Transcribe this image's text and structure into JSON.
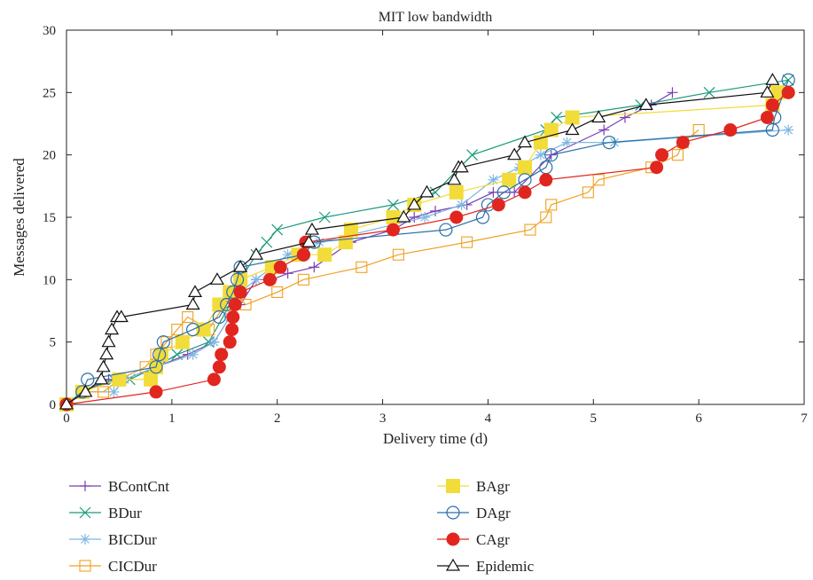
{
  "chart_data": {
    "type": "line",
    "title": "MIT low bandwidth",
    "xlabel": "Delivery time (d)",
    "ylabel": "Messages delivered",
    "xlim": [
      0,
      7
    ],
    "ylim": [
      0,
      30
    ],
    "xticks": [
      "0",
      "1",
      "2",
      "3",
      "4",
      "5",
      "6",
      "7"
    ],
    "yticks": [
      "0",
      "5",
      "10",
      "15",
      "20",
      "25",
      "30"
    ],
    "grid": false,
    "legend_position": "bottom",
    "series": [
      {
        "name": "BContCnt",
        "color": "#7a3fb5",
        "marker": "plus",
        "x": [
          0,
          0.15,
          0.4,
          0.55,
          0.85,
          1.15,
          1.4,
          1.55,
          1.65,
          1.8,
          1.95,
          2.1,
          2.35,
          2.7,
          3.1,
          3.3,
          3.5,
          3.8,
          4.05,
          4.25,
          4.6,
          5.1,
          5.3,
          5.55,
          5.75
        ],
        "y": [
          0,
          1,
          2,
          2,
          3,
          4,
          5,
          7,
          8,
          10,
          10,
          10.5,
          11,
          13,
          14,
          15,
          15.5,
          16,
          17,
          17,
          20,
          22,
          23,
          24,
          25
        ]
      },
      {
        "name": "BDur",
        "color": "#1a9a7a",
        "marker": "x",
        "x": [
          0,
          0.15,
          0.45,
          0.6,
          0.85,
          1.05,
          1.35,
          1.55,
          1.65,
          1.8,
          1.9,
          2.0,
          2.45,
          3.1,
          3.5,
          3.85,
          4.55,
          4.65,
          5.45,
          6.1,
          6.85
        ],
        "y": [
          0,
          1,
          2,
          2,
          3,
          4,
          5,
          8,
          10,
          12,
          13,
          14,
          15,
          16,
          17,
          20,
          22,
          23,
          24,
          25,
          26
        ]
      },
      {
        "name": "BICDur",
        "color": "#7fb8e0",
        "marker": "star",
        "x": [
          0,
          0.15,
          0.45,
          0.55,
          0.85,
          1.2,
          1.4,
          1.55,
          1.65,
          1.8,
          2.1,
          2.4,
          3.4,
          3.75,
          4.05,
          4.3,
          4.5,
          4.75,
          5.2,
          6.85
        ],
        "y": [
          0,
          1,
          1,
          2,
          3,
          4,
          5,
          7,
          9,
          10,
          12,
          13,
          15,
          16,
          18,
          19,
          20,
          21,
          21,
          22
        ]
      },
      {
        "name": "CICDur",
        "color": "#f0a020",
        "marker": "square",
        "x": [
          0,
          0.15,
          0.35,
          0.5,
          0.75,
          0.85,
          0.95,
          1.05,
          1.15,
          1.35,
          1.5,
          1.6,
          1.7,
          2.0,
          2.25,
          2.8,
          3.15,
          3.8,
          4.4,
          4.55,
          4.6,
          4.95,
          5.05,
          5.55,
          5.8,
          5.85,
          6.0
        ],
        "y": [
          0,
          1,
          1,
          2,
          3,
          4,
          5,
          6,
          7,
          6,
          8,
          9,
          8,
          9,
          10,
          11,
          12,
          13,
          14,
          15,
          16,
          17,
          18,
          19,
          20,
          21,
          22
        ]
      },
      {
        "name": "BAgr",
        "color": "#f2dc3a",
        "marker": "filled-square",
        "x": [
          0,
          0.15,
          0.5,
          0.8,
          0.85,
          0.9,
          1.1,
          1.3,
          1.45,
          1.55,
          1.65,
          1.95,
          2.2,
          2.45,
          2.65,
          2.7,
          3.1,
          3.3,
          3.7,
          4.2,
          4.35,
          4.5,
          4.6,
          4.8,
          6.7,
          6.75
        ],
        "y": [
          0,
          1,
          2,
          2,
          3,
          4,
          5,
          6,
          8,
          9,
          10,
          11,
          12,
          12,
          13,
          14,
          15,
          16,
          17,
          18,
          19,
          21,
          22,
          23,
          24,
          25
        ]
      },
      {
        "name": "DAgr",
        "color": "#2c6fa8",
        "marker": "circle",
        "x": [
          0,
          0.15,
          0.2,
          0.85,
          0.88,
          0.92,
          1.2,
          1.45,
          1.52,
          1.58,
          1.62,
          1.65,
          2.25,
          2.35,
          3.6,
          3.95,
          4.0,
          4.15,
          4.35,
          4.55,
          4.6,
          5.15,
          6.7,
          6.72,
          6.85
        ],
        "y": [
          0,
          1,
          2,
          3,
          4,
          5,
          6,
          7,
          8,
          9,
          10,
          11,
          12,
          13,
          14,
          15,
          16,
          17,
          18,
          19,
          20,
          21,
          22,
          23,
          26
        ]
      },
      {
        "name": "CAgr",
        "color": "#e0261e",
        "marker": "filled-circle",
        "x": [
          0,
          0.85,
          1.4,
          1.45,
          1.47,
          1.55,
          1.57,
          1.58,
          1.6,
          1.65,
          1.93,
          2.03,
          2.25,
          2.27,
          3.1,
          3.7,
          4.1,
          4.35,
          4.55,
          5.6,
          5.65,
          5.85,
          6.3,
          6.65,
          6.7,
          6.85
        ],
        "y": [
          0,
          1,
          2,
          3,
          4,
          5,
          6,
          7,
          8,
          9,
          10,
          11,
          12,
          13,
          14,
          15,
          16,
          17,
          18,
          19,
          20,
          21,
          22,
          23,
          24,
          25
        ]
      },
      {
        "name": "Epidemic",
        "color": "#111111",
        "marker": "triangle",
        "x": [
          0,
          0.18,
          0.33,
          0.35,
          0.38,
          0.4,
          0.43,
          0.48,
          0.52,
          1.2,
          1.22,
          1.43,
          1.65,
          1.8,
          2.3,
          2.33,
          3.2,
          3.3,
          3.42,
          3.68,
          3.72,
          3.75,
          4.25,
          4.35,
          4.8,
          5.05,
          5.5,
          6.65,
          6.7
        ],
        "y": [
          0,
          1,
          2,
          3,
          4,
          5,
          6,
          7,
          7,
          8,
          9,
          10,
          11,
          12,
          13,
          14,
          15,
          16,
          17,
          18,
          19,
          19,
          20,
          21,
          22,
          23,
          24,
          25,
          26
        ]
      }
    ]
  }
}
